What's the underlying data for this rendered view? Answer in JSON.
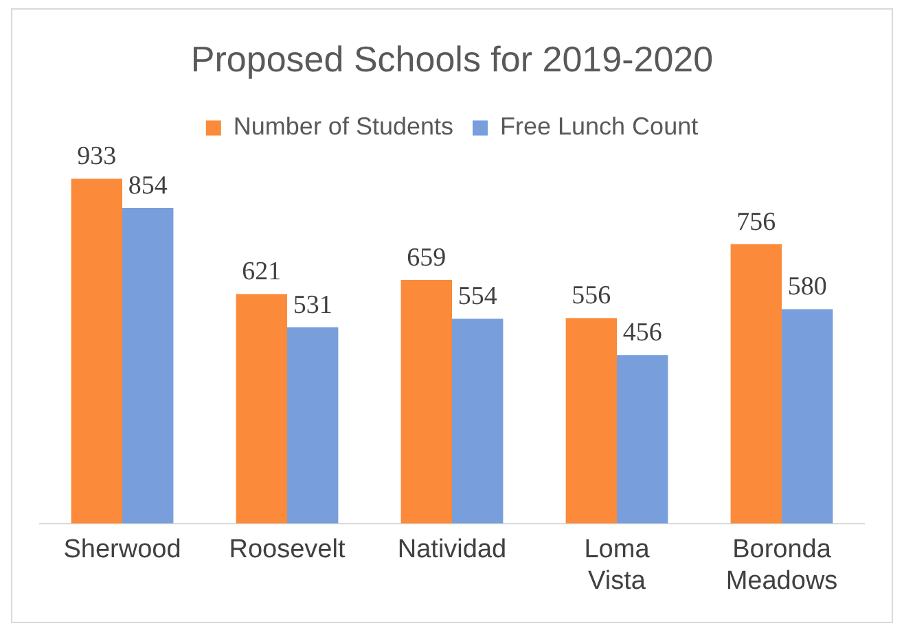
{
  "chart_data": {
    "type": "bar",
    "title": "Proposed Schools for 2019-2020",
    "categories": [
      "Sherwood",
      "Roosevelt",
      "Natividad",
      "Loma Vista",
      "Boronda Meadows"
    ],
    "series": [
      {
        "name": "Number of Students",
        "color": "#fb8a3a",
        "values": [
          933,
          621,
          659,
          556,
          756
        ]
      },
      {
        "name": "Free Lunch Count",
        "color": "#789fdb",
        "values": [
          854,
          531,
          554,
          456,
          580
        ]
      }
    ],
    "data_labels": true,
    "legend": "top",
    "grid": false,
    "tick_labels": "x"
  }
}
